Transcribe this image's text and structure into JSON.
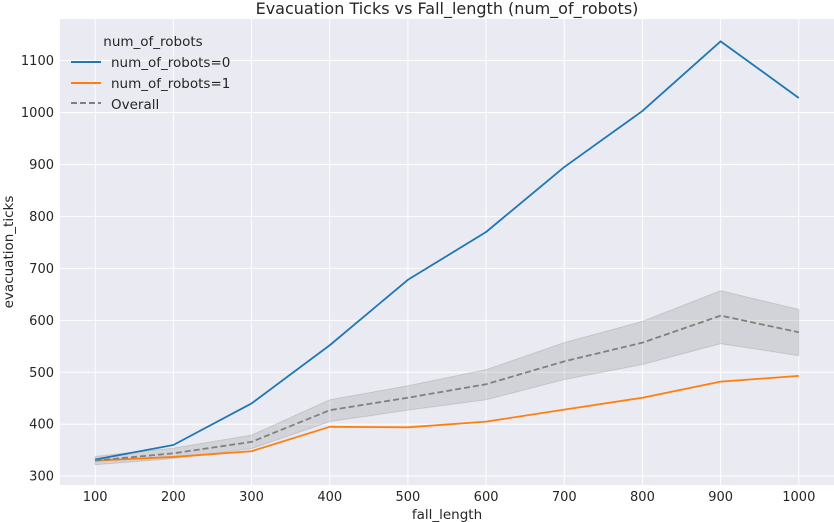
{
  "chart_data": {
    "type": "line",
    "title": "Evacuation Ticks vs Fall_length (num_of_robots)",
    "xlabel": "fall_length",
    "ylabel": "evacuation_ticks",
    "x": [
      100,
      200,
      300,
      400,
      500,
      600,
      700,
      800,
      900,
      1000
    ],
    "xlim": [
      55,
      1045
    ],
    "ylim": [
      283,
      1180
    ],
    "xticks": [
      100,
      200,
      300,
      400,
      500,
      600,
      700,
      800,
      900,
      1000
    ],
    "yticks": [
      300,
      400,
      500,
      600,
      700,
      800,
      900,
      1000,
      1100
    ],
    "grid": true,
    "legend": {
      "title": "num_of_robots",
      "placement": "top-left"
    },
    "series": [
      {
        "name": "num_of_robots=0",
        "color": "#1f77b4",
        "style": "solid",
        "values": [
          332,
          360,
          440,
          552,
          678,
          770,
          895,
          1003,
          1137,
          1028
        ]
      },
      {
        "name": "num_of_robots=1",
        "color": "#ff7f0e",
        "style": "solid",
        "values": [
          330,
          337,
          348,
          395,
          394,
          405,
          428,
          451,
          482,
          493
        ]
      },
      {
        "name": "Overall",
        "color": "#808080",
        "style": "dashed",
        "values": [
          330,
          344,
          366,
          427,
          451,
          477,
          521,
          557,
          609,
          577
        ],
        "ci_lower": [
          322,
          334,
          353,
          405,
          427,
          447,
          486,
          515,
          555,
          532
        ],
        "ci_upper": [
          338,
          354,
          379,
          447,
          474,
          505,
          557,
          598,
          657,
          621
        ]
      }
    ]
  }
}
